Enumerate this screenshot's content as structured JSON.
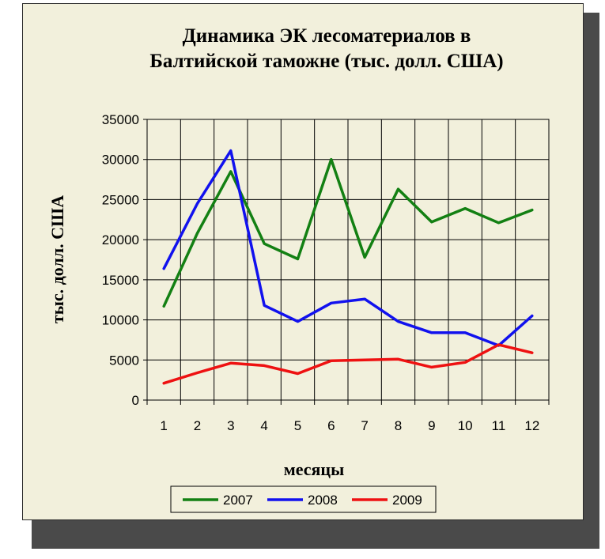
{
  "chart_data": {
    "type": "line",
    "title": "Динамика ЭК лесоматериалов в Балтийской таможне (тыс. долл. США)",
    "title_lines": [
      "Динамика ЭК лесоматериалов в",
      "Балтийской таможне (тыс. долл. США)"
    ],
    "xlabel": "месяцы",
    "ylabel": "тыс. долл. США",
    "ylim": [
      0,
      35000
    ],
    "ytick_step": 5000,
    "grid": true,
    "legend_position": "bottom",
    "categories": [
      "1",
      "2",
      "3",
      "4",
      "5",
      "6",
      "7",
      "8",
      "9",
      "10",
      "11",
      "12"
    ],
    "series": [
      {
        "name": "2007",
        "color": "#138013",
        "values": [
          11700,
          20800,
          28500,
          19500,
          17600,
          30000,
          17800,
          26300,
          22200,
          23900,
          22100,
          23700
        ]
      },
      {
        "name": "2008",
        "color": "#1111ee",
        "values": [
          16400,
          24500,
          31100,
          11800,
          9800,
          12100,
          12600,
          9800,
          8400,
          8400,
          6800,
          10500
        ]
      },
      {
        "name": "2009",
        "color": "#ee1111",
        "values": [
          2100,
          3400,
          4600,
          4300,
          3300,
          4900,
          5000,
          5100,
          4100,
          4700,
          6900,
          5900
        ]
      }
    ]
  }
}
